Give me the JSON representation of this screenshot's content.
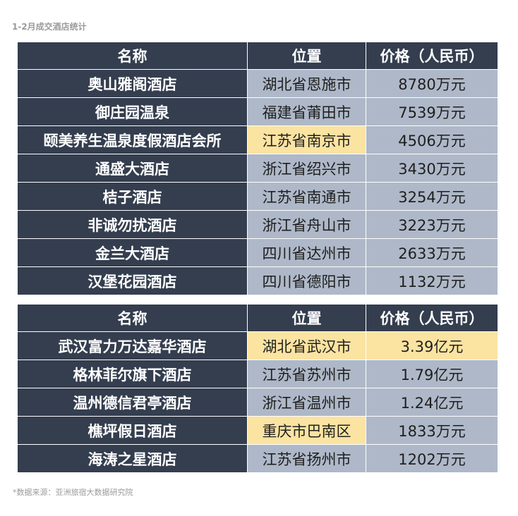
{
  "title": "1-2月成交酒店统计",
  "headers": {
    "name": "名称",
    "location": "位置",
    "price": "价格（人民币）"
  },
  "table1": [
    {
      "name": "奥山雅阁酒店",
      "location": "湖北省恩施市",
      "price": "8780万元",
      "highlight_location": false,
      "highlight_price": false
    },
    {
      "name": "御庄园温泉",
      "location": "福建省莆田市",
      "price": "7539万元",
      "highlight_location": false,
      "highlight_price": false
    },
    {
      "name": "颐美养生温泉度假酒店会所",
      "location": "江苏省南京市",
      "price": "4506万元",
      "highlight_location": true,
      "highlight_price": false
    },
    {
      "name": "通盛大酒店",
      "location": "浙江省绍兴市",
      "price": "3430万元",
      "highlight_location": false,
      "highlight_price": false
    },
    {
      "name": "桔子酒店",
      "location": "江苏省南通市",
      "price": "3254万元",
      "highlight_location": false,
      "highlight_price": false
    },
    {
      "name": "非诚勿扰酒店",
      "location": "浙江省舟山市",
      "price": "3223万元",
      "highlight_location": false,
      "highlight_price": false
    },
    {
      "name": "金兰大酒店",
      "location": "四川省达州市",
      "price": "2633万元",
      "highlight_location": false,
      "highlight_price": false
    },
    {
      "name": "汉堡花园酒店",
      "location": "四川省德阳市",
      "price": "1132万元",
      "highlight_location": false,
      "highlight_price": false
    }
  ],
  "table2": [
    {
      "name": "武汉富力万达嘉华酒店",
      "location": "湖北省武汉市",
      "price": "3.39亿元",
      "highlight_location": true,
      "highlight_price": true
    },
    {
      "name": "格林菲尔旗下酒店",
      "location": "江苏省苏州市",
      "price": "1.79亿元",
      "highlight_location": false,
      "highlight_price": false
    },
    {
      "name": "温州德信君亭酒店",
      "location": "浙江省温州市",
      "price": "1.24亿元",
      "highlight_location": false,
      "highlight_price": false
    },
    {
      "name": "樵坪假日酒店",
      "location": "重庆市巴南区",
      "price": "1833万元",
      "highlight_location": true,
      "highlight_price": false
    },
    {
      "name": "海涛之星酒店",
      "location": "江苏省扬州市",
      "price": "1202万元",
      "highlight_location": false,
      "highlight_price": false
    }
  ],
  "colors": {
    "header_bg": "#343e4f",
    "cell_bg": "#aeb8c8",
    "highlight_bg": "#fbe3a1"
  },
  "source": "*数据来源：亚洲旅宿大数据研究院"
}
